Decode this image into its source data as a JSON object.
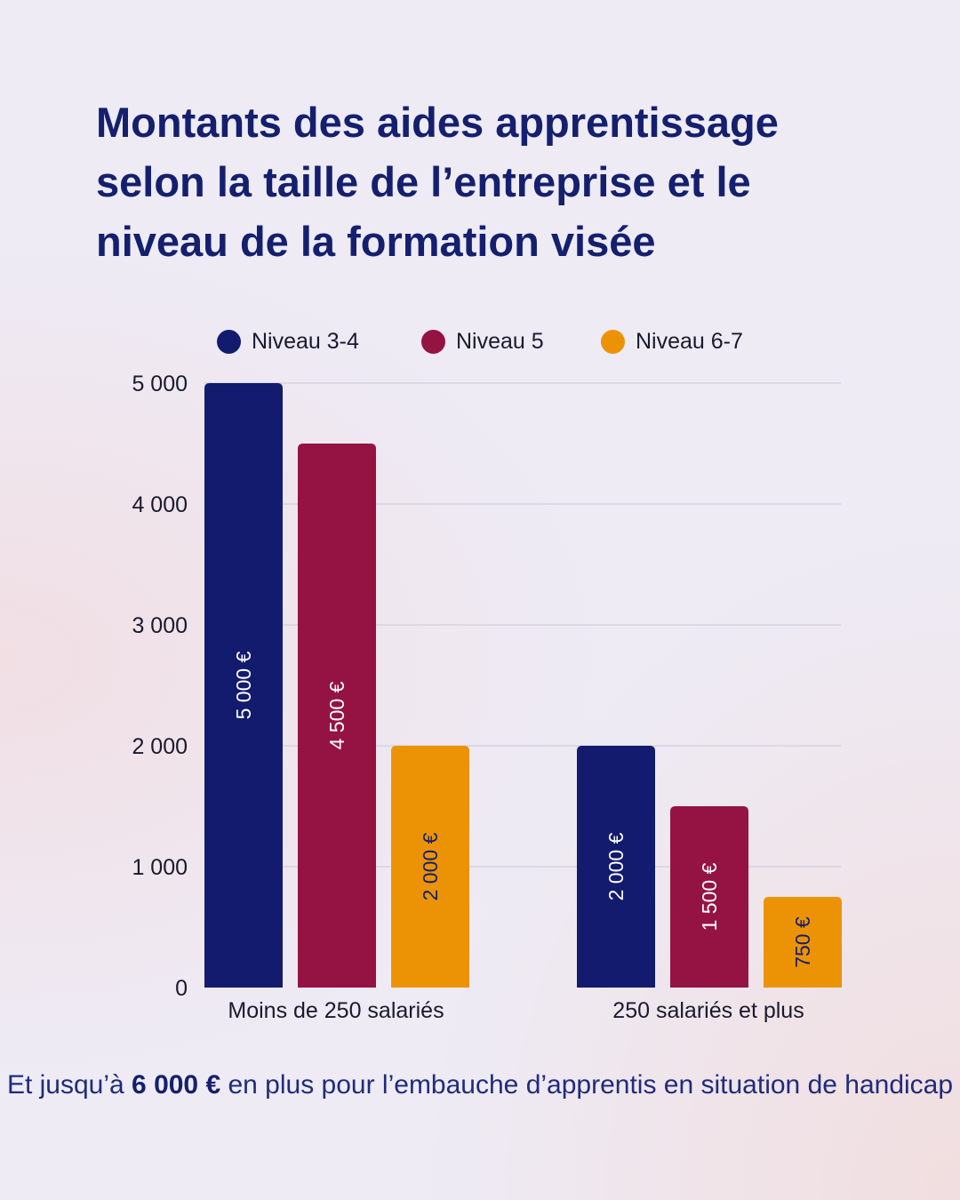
{
  "title": {
    "part1": "Montants des aides apprentissage selon ",
    "bold1": "la taille de l’entreprise",
    "part2": " et ",
    "bold2": "le niveau de la formation visée"
  },
  "legend": [
    {
      "label": "Niveau 3-4",
      "color": "#121b6e"
    },
    {
      "label": "Niveau 5",
      "color": "#951342"
    },
    {
      "label": "Niveau 6-7",
      "color": "#ec9305"
    }
  ],
  "chart_data": {
    "type": "bar",
    "categories": [
      "Moins de 250 salariés",
      "250 salariés et plus"
    ],
    "series": [
      {
        "name": "Niveau 3-4",
        "values": [
          5000,
          2000
        ],
        "labels": [
          "5 000 €",
          "2 000 €"
        ]
      },
      {
        "name": "Niveau 5",
        "values": [
          4500,
          1500
        ],
        "labels": [
          "4 500 €",
          "1 500 €"
        ]
      },
      {
        "name": "Niveau 6-7",
        "values": [
          2000,
          750
        ],
        "labels": [
          "2 000 €",
          "750 €"
        ]
      }
    ],
    "ylim": [
      0,
      5000
    ],
    "yticks": [
      0,
      1000,
      2000,
      3000,
      4000,
      5000
    ],
    "ytick_labels": [
      "0",
      "1 000",
      "2 000",
      "3 000",
      "4 000",
      "5 000"
    ],
    "grid": true,
    "legend_position": "top"
  },
  "footer": {
    "part1": "Et jusqu’à ",
    "bold": "6 000 €",
    "part2": " en plus pour l’embauche d’apprentis en situation de handicap"
  }
}
